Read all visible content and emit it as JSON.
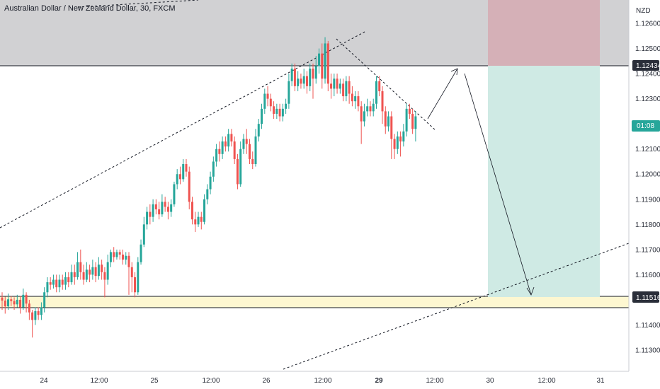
{
  "header": {
    "symbol": "Australian Dollar / New Zealand Dollar, 30, FXCM",
    "currency": "NZD"
  },
  "colors": {
    "up": "#26a69a",
    "down": "#ef5350",
    "supply_zone": "#d1d1d3",
    "demand_zone": "#fdf7d1",
    "stop_zone": "#d5b0b7",
    "target_zone": "#cfeae4",
    "price_badge": "#26a69a",
    "level_badge": "#2a2e39"
  },
  "chart_data": {
    "type": "candlestick",
    "title": "Australian Dollar / New Zealand Dollar, 30, FXCM",
    "ylabel": "NZD",
    "ylim": [
      1.1122,
      1.1266
    ],
    "y_ticks": [
      "1.12600",
      "1.12500",
      "1.12400",
      "1.12300",
      "1.12100",
      "1.12000",
      "1.11900",
      "1.11800",
      "1.11700",
      "1.11600",
      "1.11400",
      "1.11300"
    ],
    "x_tick_labels": [
      "24",
      "12:00",
      "25",
      "12:00",
      "26",
      "12:00",
      "29",
      "12:00",
      "30",
      "12:00",
      "31"
    ],
    "x_tick_bold": "29",
    "last_price_badge": "01:08",
    "level_badges": [
      "1.12434",
      "1.11516"
    ],
    "levels": {
      "resistance": 1.12434,
      "support": 1.11516,
      "support_band_low": 1.11477,
      "supply_top": 1.1266
    },
    "position": {
      "entry": 1.12434,
      "stop": 1.1266,
      "target": 1.11516,
      "direction": "short"
    },
    "candles": [
      [
        1.11509,
        1.11497,
        1.1146,
        1.1153
      ],
      [
        1.11497,
        1.11474,
        1.11445,
        1.11512
      ],
      [
        1.11474,
        1.11502,
        1.1146,
        1.11525
      ],
      [
        1.11502,
        1.11495,
        1.11475,
        1.11515
      ],
      [
        1.11495,
        1.11482,
        1.1146,
        1.1151
      ],
      [
        1.11482,
        1.115,
        1.1147,
        1.1152
      ],
      [
        1.115,
        1.1147,
        1.11445,
        1.11515
      ],
      [
        1.1147,
        1.1152,
        1.1146,
        1.11545
      ],
      [
        1.1152,
        1.11485,
        1.1145,
        1.1153
      ],
      [
        1.11485,
        1.1145,
        1.1142,
        1.115
      ],
      [
        1.1145,
        1.1142,
        1.1135,
        1.1146
      ],
      [
        1.1142,
        1.11455,
        1.114,
        1.1147
      ],
      [
        1.11455,
        1.1144,
        1.1142,
        1.1147
      ],
      [
        1.1144,
        1.1147,
        1.1142,
        1.1149
      ],
      [
        1.1147,
        1.1153,
        1.1145,
        1.1155
      ],
      [
        1.1153,
        1.1157,
        1.1151,
        1.1159
      ],
      [
        1.1157,
        1.1156,
        1.1154,
        1.1159
      ],
      [
        1.1156,
        1.1158,
        1.11545,
        1.116
      ],
      [
        1.1158,
        1.1155,
        1.1153,
        1.116
      ],
      [
        1.1155,
        1.1158,
        1.1153,
        1.116
      ],
      [
        1.1158,
        1.1156,
        1.1154,
        1.116
      ],
      [
        1.1156,
        1.1159,
        1.1154,
        1.1161
      ],
      [
        1.1159,
        1.1157,
        1.1155,
        1.1161
      ],
      [
        1.1157,
        1.1161,
        1.1156,
        1.1164
      ],
      [
        1.1161,
        1.1159,
        1.1156,
        1.1164
      ],
      [
        1.1159,
        1.1165,
        1.1158,
        1.1169
      ],
      [
        1.1165,
        1.1161,
        1.1158,
        1.117
      ],
      [
        1.1161,
        1.1158,
        1.1156,
        1.1164
      ],
      [
        1.1158,
        1.1162,
        1.1157,
        1.1165
      ],
      [
        1.1162,
        1.116,
        1.1157,
        1.1164
      ],
      [
        1.116,
        1.1163,
        1.1158,
        1.1166
      ],
      [
        1.1163,
        1.11595,
        1.1157,
        1.1165
      ],
      [
        1.11595,
        1.1164,
        1.1158,
        1.1167
      ],
      [
        1.1164,
        1.1161,
        1.1158,
        1.1166
      ],
      [
        1.1161,
        1.1158,
        1.1151,
        1.1163
      ],
      [
        1.1158,
        1.1165,
        1.1156,
        1.1168
      ],
      [
        1.1165,
        1.1169,
        1.1163,
        1.117
      ],
      [
        1.1169,
        1.1167,
        1.1165,
        1.1171
      ],
      [
        1.1167,
        1.1169,
        1.1166,
        1.117
      ],
      [
        1.1169,
        1.1168,
        1.1166,
        1.117
      ],
      [
        1.1168,
        1.1166,
        1.1164,
        1.117
      ],
      [
        1.1166,
        1.11675,
        1.1164,
        1.1169
      ],
      [
        1.11675,
        1.1163,
        1.1152,
        1.1169
      ],
      [
        1.1163,
        1.1159,
        1.1153,
        1.1165
      ],
      [
        1.1159,
        1.1153,
        1.1151,
        1.1161
      ],
      [
        1.1153,
        1.1165,
        1.1152,
        1.1167
      ],
      [
        1.1165,
        1.1172,
        1.1164,
        1.1174
      ],
      [
        1.1172,
        1.118,
        1.1171,
        1.1183
      ],
      [
        1.118,
        1.1185,
        1.1178,
        1.1187
      ],
      [
        1.1185,
        1.1183,
        1.118,
        1.1188
      ],
      [
        1.1183,
        1.1188,
        1.1181,
        1.119
      ],
      [
        1.1188,
        1.1186,
        1.1184,
        1.119
      ],
      [
        1.1186,
        1.1184,
        1.1182,
        1.1189
      ],
      [
        1.1184,
        1.1189,
        1.1183,
        1.1192
      ],
      [
        1.1189,
        1.1187,
        1.1185,
        1.1191
      ],
      [
        1.1187,
        1.1185,
        1.1182,
        1.1189
      ],
      [
        1.1185,
        1.1188,
        1.1183,
        1.119
      ],
      [
        1.1188,
        1.1196,
        1.1187,
        1.1197
      ],
      [
        1.1196,
        1.12,
        1.1194,
        1.1202
      ],
      [
        1.12,
        1.1198,
        1.1196,
        1.1203
      ],
      [
        1.1198,
        1.1204,
        1.1197,
        1.1206
      ],
      [
        1.1204,
        1.1201,
        1.1199,
        1.1206
      ],
      [
        1.1201,
        1.1189,
        1.1186,
        1.1203
      ],
      [
        1.1189,
        1.1182,
        1.118,
        1.1191
      ],
      [
        1.1182,
        1.118,
        1.1177,
        1.1185
      ],
      [
        1.118,
        1.1183,
        1.1179,
        1.1185
      ],
      [
        1.1183,
        1.1181,
        1.1178,
        1.1185
      ],
      [
        1.1181,
        1.119,
        1.118,
        1.1192
      ],
      [
        1.119,
        1.1194,
        1.1188,
        1.1196
      ],
      [
        1.1194,
        1.1199,
        1.1192,
        1.1201
      ],
      [
        1.1199,
        1.1205,
        1.1197,
        1.1207
      ],
      [
        1.1205,
        1.121,
        1.1203,
        1.1212
      ],
      [
        1.121,
        1.1208,
        1.1205,
        1.1213
      ],
      [
        1.1208,
        1.1213,
        1.1206,
        1.1215
      ],
      [
        1.1213,
        1.1211,
        1.1209,
        1.1215
      ],
      [
        1.1211,
        1.1216,
        1.1209,
        1.1218
      ],
      [
        1.1216,
        1.1213,
        1.1211,
        1.1218
      ],
      [
        1.1213,
        1.1206,
        1.1204,
        1.1215
      ],
      [
        1.1206,
        1.1196,
        1.1194,
        1.1208
      ],
      [
        1.1196,
        1.121,
        1.1195,
        1.1213
      ],
      [
        1.121,
        1.1214,
        1.1208,
        1.1216
      ],
      [
        1.1214,
        1.1212,
        1.1208,
        1.1218
      ],
      [
        1.1212,
        1.1206,
        1.1204,
        1.1214
      ],
      [
        1.1206,
        1.1204,
        1.1202,
        1.1209
      ],
      [
        1.1204,
        1.1215,
        1.1203,
        1.1218
      ],
      [
        1.1215,
        1.122,
        1.1213,
        1.1222
      ],
      [
        1.122,
        1.1226,
        1.1218,
        1.1228
      ],
      [
        1.1226,
        1.1232,
        1.1224,
        1.1234
      ],
      [
        1.1232,
        1.123,
        1.1227,
        1.1235
      ],
      [
        1.123,
        1.1227,
        1.1225,
        1.1232
      ],
      [
        1.1227,
        1.1224,
        1.1222,
        1.1229
      ],
      [
        1.1224,
        1.1226,
        1.1222,
        1.1228
      ],
      [
        1.1226,
        1.1223,
        1.1221,
        1.1228
      ],
      [
        1.1223,
        1.1226,
        1.1221,
        1.1228
      ],
      [
        1.1226,
        1.1228,
        1.1224,
        1.123
      ],
      [
        1.1228,
        1.1237,
        1.1226,
        1.124
      ],
      [
        1.1237,
        1.1242,
        1.1235,
        1.1244
      ],
      [
        1.1242,
        1.1235,
        1.1233,
        1.1244
      ],
      [
        1.1235,
        1.1238,
        1.1233,
        1.1241
      ],
      [
        1.1238,
        1.1236,
        1.1234,
        1.124
      ],
      [
        1.1236,
        1.1239,
        1.1234,
        1.1242
      ],
      [
        1.1239,
        1.1235,
        1.1232,
        1.1241
      ],
      [
        1.1235,
        1.1242,
        1.1233,
        1.1244
      ],
      [
        1.1242,
        1.1238,
        1.123,
        1.1244
      ],
      [
        1.1238,
        1.1243,
        1.1236,
        1.1247
      ],
      [
        1.1243,
        1.1248,
        1.124,
        1.125
      ],
      [
        1.1248,
        1.1238,
        1.1234,
        1.1252
      ],
      [
        1.1238,
        1.1252,
        1.1236,
        1.12545
      ],
      [
        1.1252,
        1.1236,
        1.1233,
        1.1253
      ],
      [
        1.1236,
        1.1234,
        1.123,
        1.124
      ],
      [
        1.1234,
        1.1238,
        1.1231,
        1.124
      ],
      [
        1.1238,
        1.1234,
        1.1232,
        1.124
      ],
      [
        1.1234,
        1.1236,
        1.1232,
        1.1238
      ],
      [
        1.1236,
        1.1231,
        1.1229,
        1.1238
      ],
      [
        1.1231,
        1.1237,
        1.1229,
        1.1239
      ],
      [
        1.1237,
        1.1232,
        1.1228,
        1.1239
      ],
      [
        1.1232,
        1.1229,
        1.1227,
        1.1235
      ],
      [
        1.1229,
        1.1231,
        1.1226,
        1.1233
      ],
      [
        1.1231,
        1.1227,
        1.1225,
        1.1233
      ],
      [
        1.1227,
        1.1221,
        1.1212,
        1.1229
      ],
      [
        1.1221,
        1.1225,
        1.1219,
        1.1228
      ],
      [
        1.1225,
        1.1227,
        1.1223,
        1.123
      ],
      [
        1.1227,
        1.1225,
        1.1223,
        1.1229
      ],
      [
        1.1225,
        1.1228,
        1.1223,
        1.123
      ],
      [
        1.1228,
        1.1237,
        1.1226,
        1.1239
      ],
      [
        1.1237,
        1.1233,
        1.1231,
        1.1239
      ],
      [
        1.1233,
        1.1225,
        1.122,
        1.1235
      ],
      [
        1.1225,
        1.1219,
        1.1216,
        1.1227
      ],
      [
        1.1219,
        1.1223,
        1.1217,
        1.1225
      ],
      [
        1.1223,
        1.1214,
        1.1206,
        1.1225
      ],
      [
        1.1214,
        1.121,
        1.1206,
        1.1216
      ],
      [
        1.121,
        1.1215,
        1.1208,
        1.1217
      ],
      [
        1.1215,
        1.1213,
        1.1207,
        1.1217
      ],
      [
        1.1213,
        1.1217,
        1.1211,
        1.122
      ],
      [
        1.1217,
        1.1226,
        1.1215,
        1.1228
      ],
      [
        1.1226,
        1.1224,
        1.1222,
        1.1228
      ],
      [
        1.1224,
        1.1218,
        1.1216,
        1.1226
      ],
      [
        1.1218,
        1.1223,
        1.1213,
        1.1225
      ]
    ]
  }
}
